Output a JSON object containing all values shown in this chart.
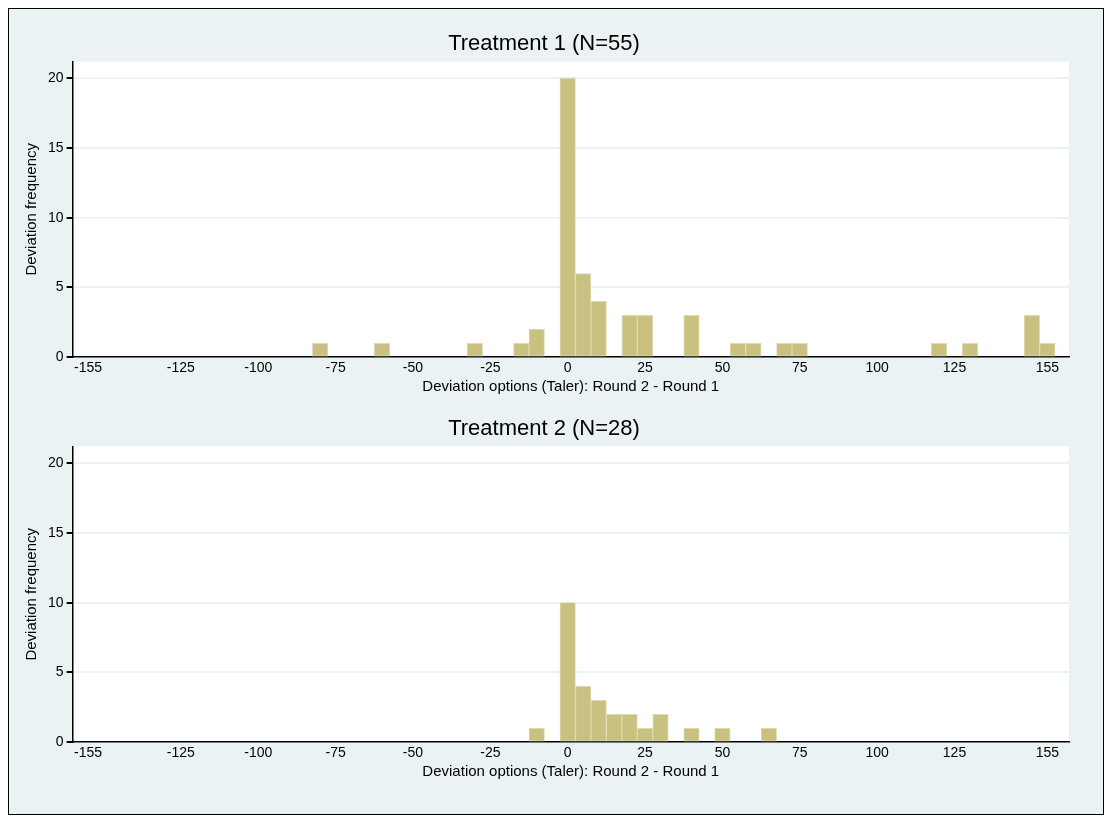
{
  "chart_data": [
    {
      "type": "histogram",
      "title": "Treatment 1 (N=55)",
      "xlabel": "Deviation options (Taler): Round 2 - Round 1",
      "ylabel": "Deviation frequency",
      "color": "#c9c17f",
      "bins": [
        -82.5,
        -77.5,
        -72.5,
        -67.5,
        -62.5,
        -57.5,
        -52.5,
        -47.5,
        -42.5,
        -37.5,
        -32.5,
        -27.5,
        -22.5,
        -17.5,
        -12.5,
        -7.5,
        -2.5,
        2.5,
        7.5,
        12.5,
        17.5,
        22.5,
        27.5,
        32.5,
        37.5,
        42.5,
        47.5,
        52.5,
        57.5,
        62.5,
        67.5,
        72.5,
        77.5,
        82.5,
        87.5,
        92.5,
        97.5,
        102.5,
        107.5,
        112.5,
        117.5,
        122.5,
        127.5,
        132.5,
        137.5,
        142.5,
        147.5,
        152.5,
        157.5
      ],
      "values": [
        1,
        0,
        0,
        0,
        1,
        0,
        0,
        0,
        0,
        0,
        1,
        0,
        0,
        1,
        2,
        0,
        20,
        6,
        4,
        0,
        3,
        3,
        0,
        0,
        3,
        0,
        0,
        1,
        1,
        0,
        1,
        1,
        0,
        0,
        0,
        0,
        0,
        0,
        0,
        0,
        1,
        0,
        1,
        0,
        0,
        0,
        3,
        1
      ],
      "xlim": [
        -160,
        162
      ],
      "xticks": [
        -155,
        -125,
        -100,
        -75,
        -50,
        -25,
        0,
        25,
        50,
        75,
        100,
        125,
        155
      ],
      "ylim": [
        0,
        21.2
      ],
      "yticks": [
        0,
        5,
        10,
        15,
        20
      ],
      "grid": "y",
      "legend": false
    },
    {
      "type": "histogram",
      "title": "Treatment 2 (N=28)",
      "xlabel": "Deviation options (Taler): Round 2 - Round 1",
      "ylabel": "Deviation frequency",
      "color": "#c9c17f",
      "bins": [
        -12.5,
        -7.5,
        -2.5,
        2.5,
        7.5,
        12.5,
        17.5,
        22.5,
        27.5,
        32.5,
        37.5,
        42.5,
        47.5,
        52.5,
        57.5,
        62.5,
        67.5
      ],
      "values": [
        1,
        0,
        10,
        4,
        3,
        2,
        2,
        1,
        2,
        0,
        1,
        0,
        1,
        0,
        0,
        1
      ],
      "xlim": [
        -160,
        162
      ],
      "xticks": [
        -155,
        -125,
        -100,
        -75,
        -50,
        -25,
        0,
        25,
        50,
        75,
        100,
        125,
        155
      ],
      "ylim": [
        0,
        21.2
      ],
      "yticks": [
        0,
        5,
        10,
        15,
        20
      ],
      "grid": "y",
      "legend": false
    }
  ]
}
